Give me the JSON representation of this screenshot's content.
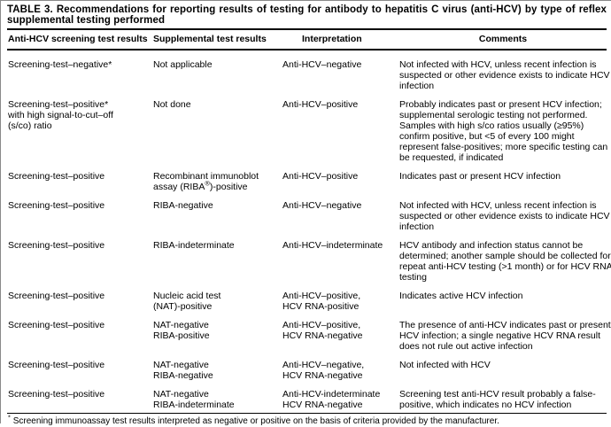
{
  "title": {
    "line1": "TABLE 3. Recommendations for reporting results of testing for antibody to hepatitis C virus (anti-HCV) by type of reflex",
    "line2": "supplemental testing performed"
  },
  "table": {
    "columns": [
      "Anti-HCV screening test results",
      "Supplemental test results",
      "Interpretation",
      "Comments"
    ],
    "rows": [
      {
        "cells": [
          [
            "Screening-test–negative*"
          ],
          [
            "Not applicable"
          ],
          [
            "Anti-HCV–negative"
          ],
          [
            "Not infected with HCV, unless recent infection is",
            "suspected or other evidence exists to indicate HCV",
            "infection"
          ]
        ]
      },
      {
        "cells": [
          [
            "Screening-test–positive*",
            "with high signal-to-cut–off",
            "(s/co) ratio"
          ],
          [
            "Not done"
          ],
          [
            "Anti-HCV–positive"
          ],
          [
            "Probably indicates past or present HCV infection;",
            "supplemental serologic testing not performed.",
            "Samples with high s/co ratios usually (≥95%)",
            "confirm positive, but <5 of every 100 might",
            "represent false-positives; more specific testing can",
            "be requested, if indicated"
          ]
        ]
      },
      {
        "cells": [
          [
            "Screening-test–positive"
          ],
          [
            "Recombinant immunoblot",
            "assay (RIBA®)-positive"
          ],
          [
            "Anti-HCV–positive"
          ],
          [
            "Indicates past or present HCV infection"
          ]
        ]
      },
      {
        "cells": [
          [
            "Screening-test–positive"
          ],
          [
            "RIBA-negative"
          ],
          [
            "Anti-HCV–negative"
          ],
          [
            "Not infected with HCV, unless recent infection is",
            "suspected or other evidence exists to indicate HCV",
            "infection"
          ]
        ]
      },
      {
        "cells": [
          [
            "Screening-test–positive"
          ],
          [
            "RIBA-indeterminate"
          ],
          [
            "Anti-HCV–indeterminate"
          ],
          [
            "HCV antibody and infection status cannot be",
            "determined; another sample should be collected for",
            "repeat anti-HCV testing (>1 month) or for HCV RNA",
            "testing"
          ]
        ]
      },
      {
        "cells": [
          [
            "Screening-test–positive"
          ],
          [
            "Nucleic acid test",
            "(NAT)-positive"
          ],
          [
            "Anti-HCV–positive,",
            "HCV RNA-positive"
          ],
          [
            "Indicates active HCV infection"
          ]
        ]
      },
      {
        "cells": [
          [
            "Screening-test–positive"
          ],
          [
            "NAT-negative",
            "RIBA-positive"
          ],
          [
            "Anti-HCV–positive,",
            "HCV RNA-negative"
          ],
          [
            "The presence of anti-HCV indicates past or present",
            "HCV infection; a single negative HCV RNA result",
            "does not rule out active infection"
          ]
        ]
      },
      {
        "cells": [
          [
            "Screening-test–positive"
          ],
          [
            "NAT-negative",
            "RIBA-negative"
          ],
          [
            "Anti-HCV–negative,",
            "HCV RNA-negative"
          ],
          [
            "Not infected with HCV"
          ]
        ]
      },
      {
        "cells": [
          [
            "Screening-test–positive"
          ],
          [
            "NAT-negative",
            "RIBA-indeterminate"
          ],
          [
            "Anti-HCV-indeterminate",
            "HCV RNA-negative"
          ],
          [
            "Screening test anti-HCV result probably a false-",
            "positive, which indicates no HCV infection"
          ]
        ]
      }
    ]
  },
  "footnote": {
    "marker": "*",
    "text": " Screening immunoassay test results interpreted as negative or positive on the basis of criteria provided by the manufacturer."
  },
  "colors": {
    "background": "#ffffff",
    "text": "#000000",
    "rule": "#000000"
  }
}
